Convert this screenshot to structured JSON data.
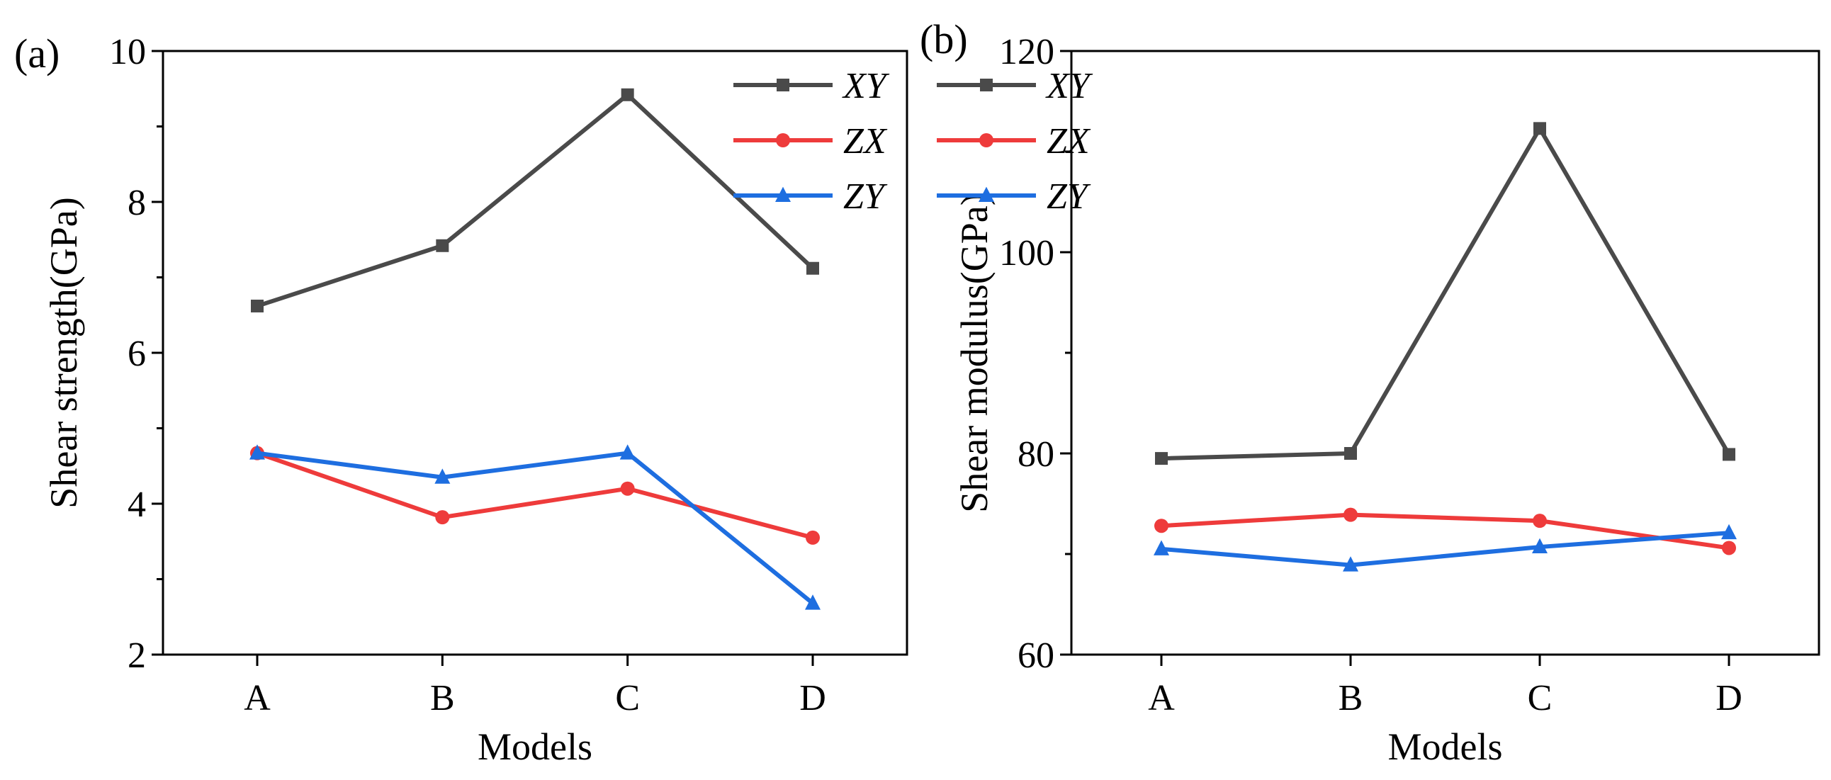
{
  "chart_data": [
    {
      "type": "line",
      "panel_label": "(a)",
      "xlabel": "Models",
      "ylabel": "Shear strength(GPa)",
      "categories": [
        "A",
        "B",
        "C",
        "D"
      ],
      "ylim": [
        2,
        10
      ],
      "yticks": [
        2,
        4,
        6,
        8,
        10
      ],
      "ytick_labels": [
        "2",
        "4",
        "6",
        "8",
        "10"
      ],
      "grid": false,
      "legend_position": "top-right",
      "series": [
        {
          "name": "XY",
          "color": "#4a4a4a",
          "marker": "square",
          "values": [
            6.62,
            7.42,
            9.42,
            7.12
          ]
        },
        {
          "name": "ZX",
          "color": "#ee3b3b",
          "marker": "circle",
          "values": [
            4.67,
            3.82,
            4.2,
            3.55
          ]
        },
        {
          "name": "ZY",
          "color": "#1e6ee0",
          "marker": "triangle",
          "values": [
            4.67,
            4.35,
            4.67,
            2.68
          ]
        }
      ]
    },
    {
      "type": "line",
      "panel_label": "(b)",
      "xlabel": "Models",
      "ylabel": "Shear modulus(GPa)",
      "categories": [
        "A",
        "B",
        "C",
        "D"
      ],
      "ylim": [
        60,
        120
      ],
      "yticks": [
        60,
        80,
        100,
        120
      ],
      "ytick_labels": [
        "60",
        "80",
        "100",
        "120"
      ],
      "grid": false,
      "legend_position": "top-right",
      "series": [
        {
          "name": "XY",
          "color": "#4a4a4a",
          "marker": "square",
          "values": [
            79.5,
            80.0,
            112.3,
            79.9
          ]
        },
        {
          "name": "ZX",
          "color": "#ee3b3b",
          "marker": "circle",
          "values": [
            72.8,
            73.9,
            73.3,
            70.6
          ]
        },
        {
          "name": "ZY",
          "color": "#1e6ee0",
          "marker": "triangle",
          "values": [
            70.5,
            68.9,
            70.7,
            72.1
          ]
        }
      ]
    }
  ]
}
